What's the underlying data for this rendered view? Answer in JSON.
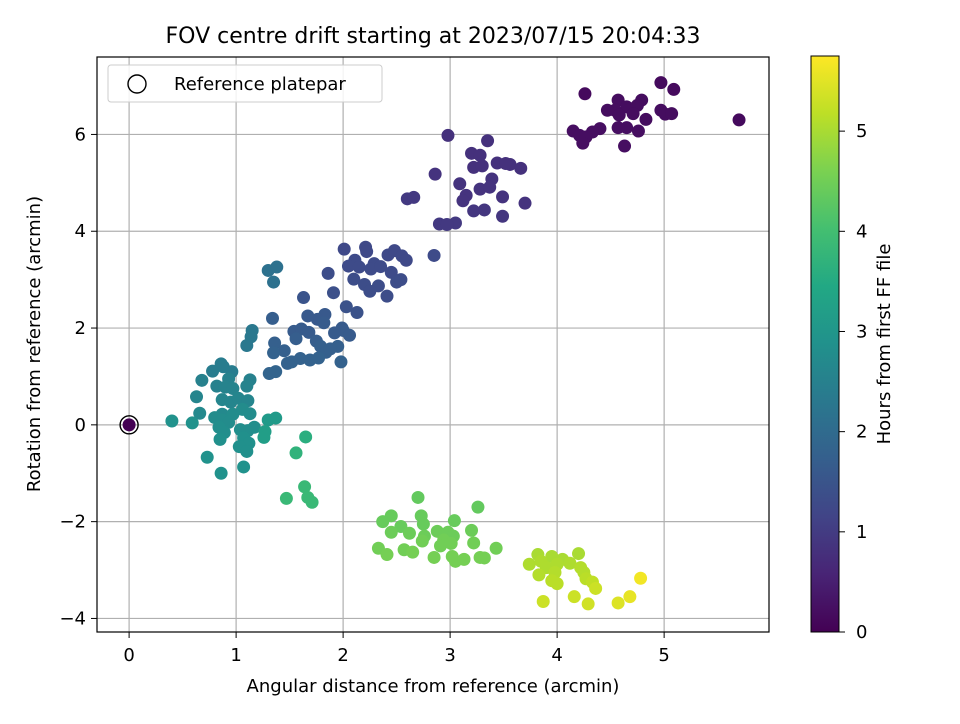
{
  "chart_data": {
    "type": "scatter",
    "title": "FOV centre drift starting at 2023/07/15 20:04:33",
    "xlabel": "Angular distance from reference (arcmin)",
    "ylabel": "Rotation from reference (arcmin)",
    "xlim": [
      -0.3,
      5.98
    ],
    "ylim": [
      -4.28,
      7.6
    ],
    "xticks": [
      0,
      1,
      2,
      3,
      4,
      5
    ],
    "yticks": [
      -4,
      -2,
      0,
      2,
      4,
      6
    ],
    "grid": true,
    "legend": {
      "placement": "top-left",
      "entries": [
        "Reference platepar"
      ]
    },
    "reference_point": {
      "x": 0,
      "y": 0
    },
    "colorbar": {
      "label": "Hours from first FF file",
      "colormap": "viridis",
      "range": [
        0,
        5.75
      ],
      "ticks": [
        0,
        1,
        2,
        3,
        4,
        5
      ]
    },
    "points": [
      {
        "x": 0.0,
        "y": 0.0,
        "c": 0.0
      },
      {
        "x": 4.26,
        "y": 6.84,
        "c": 0.15
      },
      {
        "x": 4.97,
        "y": 7.07,
        "c": 0.15
      },
      {
        "x": 5.09,
        "y": 6.93,
        "c": 0.15
      },
      {
        "x": 4.57,
        "y": 6.71,
        "c": 0.2
      },
      {
        "x": 4.79,
        "y": 6.71,
        "c": 0.2
      },
      {
        "x": 4.65,
        "y": 6.57,
        "c": 0.2
      },
      {
        "x": 4.54,
        "y": 6.5,
        "c": 0.2
      },
      {
        "x": 4.47,
        "y": 6.5,
        "c": 0.2
      },
      {
        "x": 4.75,
        "y": 6.6,
        "c": 0.2
      },
      {
        "x": 4.97,
        "y": 6.5,
        "c": 0.2
      },
      {
        "x": 5.01,
        "y": 6.42,
        "c": 0.2
      },
      {
        "x": 5.07,
        "y": 6.43,
        "c": 0.2
      },
      {
        "x": 4.83,
        "y": 6.31,
        "c": 0.2
      },
      {
        "x": 4.71,
        "y": 6.43,
        "c": 0.2
      },
      {
        "x": 4.58,
        "y": 6.4,
        "c": 0.2
      },
      {
        "x": 4.65,
        "y": 6.14,
        "c": 0.22
      },
      {
        "x": 4.57,
        "y": 6.14,
        "c": 0.22
      },
      {
        "x": 4.76,
        "y": 6.07,
        "c": 0.22
      },
      {
        "x": 4.4,
        "y": 6.12,
        "c": 0.22
      },
      {
        "x": 4.33,
        "y": 6.05,
        "c": 0.22
      },
      {
        "x": 4.27,
        "y": 5.95,
        "c": 0.22
      },
      {
        "x": 4.15,
        "y": 6.07,
        "c": 0.22
      },
      {
        "x": 4.21,
        "y": 5.98,
        "c": 0.22
      },
      {
        "x": 4.24,
        "y": 5.82,
        "c": 0.22
      },
      {
        "x": 4.63,
        "y": 5.76,
        "c": 0.22
      },
      {
        "x": 5.7,
        "y": 6.3,
        "c": 0.15
      },
      {
        "x": 2.98,
        "y": 5.98,
        "c": 0.8
      },
      {
        "x": 3.35,
        "y": 5.87,
        "c": 0.8
      },
      {
        "x": 3.2,
        "y": 5.61,
        "c": 0.8
      },
      {
        "x": 3.28,
        "y": 5.57,
        "c": 0.8
      },
      {
        "x": 3.44,
        "y": 5.41,
        "c": 0.8
      },
      {
        "x": 3.56,
        "y": 5.38,
        "c": 0.8
      },
      {
        "x": 3.52,
        "y": 5.4,
        "c": 0.8
      },
      {
        "x": 3.66,
        "y": 5.3,
        "c": 0.8
      },
      {
        "x": 3.22,
        "y": 5.32,
        "c": 0.8
      },
      {
        "x": 3.3,
        "y": 5.35,
        "c": 0.8
      },
      {
        "x": 2.86,
        "y": 5.18,
        "c": 0.85
      },
      {
        "x": 3.09,
        "y": 4.98,
        "c": 0.85
      },
      {
        "x": 3.39,
        "y": 5.08,
        "c": 0.85
      },
      {
        "x": 3.28,
        "y": 4.87,
        "c": 0.85
      },
      {
        "x": 3.37,
        "y": 4.91,
        "c": 0.85
      },
      {
        "x": 3.49,
        "y": 4.71,
        "c": 0.85
      },
      {
        "x": 3.15,
        "y": 4.74,
        "c": 0.85
      },
      {
        "x": 3.12,
        "y": 4.63,
        "c": 0.85
      },
      {
        "x": 2.6,
        "y": 4.67,
        "c": 0.95
      },
      {
        "x": 2.66,
        "y": 4.7,
        "c": 0.95
      },
      {
        "x": 3.7,
        "y": 4.58,
        "c": 0.85
      },
      {
        "x": 3.49,
        "y": 4.31,
        "c": 0.9
      },
      {
        "x": 3.32,
        "y": 4.44,
        "c": 0.9
      },
      {
        "x": 3.22,
        "y": 4.42,
        "c": 0.9
      },
      {
        "x": 3.05,
        "y": 4.17,
        "c": 0.95
      },
      {
        "x": 2.9,
        "y": 4.15,
        "c": 0.95
      },
      {
        "x": 2.97,
        "y": 4.14,
        "c": 0.95
      },
      {
        "x": 2.01,
        "y": 3.63,
        "c": 1.25
      },
      {
        "x": 2.21,
        "y": 3.67,
        "c": 1.25
      },
      {
        "x": 2.22,
        "y": 3.58,
        "c": 1.25
      },
      {
        "x": 2.42,
        "y": 3.51,
        "c": 1.25
      },
      {
        "x": 2.48,
        "y": 3.6,
        "c": 1.25
      },
      {
        "x": 2.55,
        "y": 3.49,
        "c": 1.25
      },
      {
        "x": 2.59,
        "y": 3.4,
        "c": 1.25
      },
      {
        "x": 2.29,
        "y": 3.33,
        "c": 1.3
      },
      {
        "x": 2.11,
        "y": 3.4,
        "c": 1.3
      },
      {
        "x": 2.05,
        "y": 3.28,
        "c": 1.3
      },
      {
        "x": 2.15,
        "y": 3.26,
        "c": 1.3
      },
      {
        "x": 2.26,
        "y": 3.22,
        "c": 1.3
      },
      {
        "x": 2.35,
        "y": 3.27,
        "c": 1.3
      },
      {
        "x": 2.45,
        "y": 3.15,
        "c": 1.3
      },
      {
        "x": 1.86,
        "y": 3.13,
        "c": 1.35
      },
      {
        "x": 2.1,
        "y": 3.01,
        "c": 1.35
      },
      {
        "x": 2.2,
        "y": 2.9,
        "c": 1.35
      },
      {
        "x": 2.33,
        "y": 2.87,
        "c": 1.35
      },
      {
        "x": 2.5,
        "y": 2.95,
        "c": 1.35
      },
      {
        "x": 2.54,
        "y": 3.0,
        "c": 1.35
      },
      {
        "x": 2.25,
        "y": 2.76,
        "c": 1.35
      },
      {
        "x": 2.41,
        "y": 2.66,
        "c": 1.35
      },
      {
        "x": 2.85,
        "y": 3.5,
        "c": 1.3
      },
      {
        "x": 1.91,
        "y": 2.73,
        "c": 1.4
      },
      {
        "x": 2.03,
        "y": 2.44,
        "c": 1.45
      },
      {
        "x": 2.13,
        "y": 2.32,
        "c": 1.45
      },
      {
        "x": 1.63,
        "y": 2.63,
        "c": 1.5
      },
      {
        "x": 1.83,
        "y": 2.28,
        "c": 1.6
      },
      {
        "x": 1.76,
        "y": 2.18,
        "c": 1.6
      },
      {
        "x": 1.67,
        "y": 2.25,
        "c": 1.6
      },
      {
        "x": 1.82,
        "y": 2.11,
        "c": 1.65
      },
      {
        "x": 1.54,
        "y": 1.93,
        "c": 1.65
      },
      {
        "x": 1.61,
        "y": 1.98,
        "c": 1.65
      },
      {
        "x": 1.68,
        "y": 1.91,
        "c": 1.65
      },
      {
        "x": 1.99,
        "y": 2.0,
        "c": 1.65
      },
      {
        "x": 2.0,
        "y": 1.95,
        "c": 1.65
      },
      {
        "x": 1.92,
        "y": 1.9,
        "c": 1.65
      },
      {
        "x": 2.06,
        "y": 1.85,
        "c": 1.65
      },
      {
        "x": 1.56,
        "y": 1.78,
        "c": 1.7
      },
      {
        "x": 1.75,
        "y": 1.73,
        "c": 1.7
      },
      {
        "x": 1.36,
        "y": 1.69,
        "c": 1.75
      },
      {
        "x": 1.45,
        "y": 1.53,
        "c": 1.75
      },
      {
        "x": 1.79,
        "y": 1.62,
        "c": 1.75
      },
      {
        "x": 1.95,
        "y": 1.62,
        "c": 1.75
      },
      {
        "x": 1.84,
        "y": 1.5,
        "c": 1.75
      },
      {
        "x": 1.88,
        "y": 1.57,
        "c": 1.75
      },
      {
        "x": 1.35,
        "y": 1.49,
        "c": 1.8
      },
      {
        "x": 1.6,
        "y": 1.37,
        "c": 1.8
      },
      {
        "x": 1.69,
        "y": 1.34,
        "c": 1.8
      },
      {
        "x": 1.77,
        "y": 1.38,
        "c": 1.8
      },
      {
        "x": 1.98,
        "y": 1.3,
        "c": 1.8
      },
      {
        "x": 1.52,
        "y": 1.3,
        "c": 1.8
      },
      {
        "x": 1.48,
        "y": 1.27,
        "c": 1.8
      },
      {
        "x": 1.37,
        "y": 1.1,
        "c": 1.85
      },
      {
        "x": 1.31,
        "y": 1.06,
        "c": 1.85
      },
      {
        "x": 1.34,
        "y": 2.2,
        "c": 1.7
      },
      {
        "x": 1.3,
        "y": 3.19,
        "c": 2.15
      },
      {
        "x": 1.38,
        "y": 3.26,
        "c": 2.15
      },
      {
        "x": 1.35,
        "y": 2.95,
        "c": 2.15
      },
      {
        "x": 1.15,
        "y": 1.95,
        "c": 2.3
      },
      {
        "x": 1.14,
        "y": 1.82,
        "c": 2.3
      },
      {
        "x": 1.1,
        "y": 1.64,
        "c": 2.3
      },
      {
        "x": 0.86,
        "y": 1.26,
        "c": 2.4
      },
      {
        "x": 0.78,
        "y": 1.11,
        "c": 2.4
      },
      {
        "x": 0.96,
        "y": 1.1,
        "c": 2.4
      },
      {
        "x": 0.88,
        "y": 1.2,
        "c": 2.4
      },
      {
        "x": 0.68,
        "y": 0.92,
        "c": 2.5
      },
      {
        "x": 0.93,
        "y": 0.95,
        "c": 2.5
      },
      {
        "x": 1.13,
        "y": 0.93,
        "c": 2.5
      },
      {
        "x": 0.82,
        "y": 0.8,
        "c": 2.5
      },
      {
        "x": 0.9,
        "y": 0.78,
        "c": 2.55
      },
      {
        "x": 0.97,
        "y": 0.75,
        "c": 2.55
      },
      {
        "x": 1.1,
        "y": 0.8,
        "c": 2.55
      },
      {
        "x": 0.63,
        "y": 0.58,
        "c": 2.6
      },
      {
        "x": 0.87,
        "y": 0.52,
        "c": 2.6
      },
      {
        "x": 0.95,
        "y": 0.47,
        "c": 2.6
      },
      {
        "x": 1.02,
        "y": 0.55,
        "c": 2.6
      },
      {
        "x": 1.11,
        "y": 0.5,
        "c": 2.6
      },
      {
        "x": 0.66,
        "y": 0.24,
        "c": 2.7
      },
      {
        "x": 0.87,
        "y": 0.22,
        "c": 2.7
      },
      {
        "x": 0.8,
        "y": 0.15,
        "c": 2.75
      },
      {
        "x": 0.87,
        "y": 0.1,
        "c": 2.75
      },
      {
        "x": 0.97,
        "y": 0.22,
        "c": 2.75
      },
      {
        "x": 1.06,
        "y": 0.32,
        "c": 2.75
      },
      {
        "x": 1.13,
        "y": 0.23,
        "c": 2.75
      },
      {
        "x": 0.93,
        "y": 0.05,
        "c": 2.75
      },
      {
        "x": 0.84,
        "y": -0.05,
        "c": 2.8
      },
      {
        "x": 0.89,
        "y": -0.16,
        "c": 2.8
      },
      {
        "x": 1.04,
        "y": -0.1,
        "c": 2.8
      },
      {
        "x": 1.11,
        "y": -0.12,
        "c": 2.8
      },
      {
        "x": 1.17,
        "y": -0.05,
        "c": 2.8
      },
      {
        "x": 0.85,
        "y": -0.3,
        "c": 2.85
      },
      {
        "x": 1.07,
        "y": -0.27,
        "c": 2.85
      },
      {
        "x": 1.12,
        "y": -0.38,
        "c": 2.85
      },
      {
        "x": 1.03,
        "y": -0.45,
        "c": 2.85
      },
      {
        "x": 1.1,
        "y": -0.55,
        "c": 2.85
      },
      {
        "x": 0.73,
        "y": -0.67,
        "c": 2.9
      },
      {
        "x": 1.07,
        "y": -0.87,
        "c": 2.9
      },
      {
        "x": 0.86,
        "y": -1.0,
        "c": 2.9
      },
      {
        "x": 0.4,
        "y": 0.08,
        "c": 2.9
      },
      {
        "x": 0.59,
        "y": 0.04,
        "c": 2.9
      },
      {
        "x": 1.3,
        "y": 0.1,
        "c": 3.1
      },
      {
        "x": 1.37,
        "y": 0.14,
        "c": 3.1
      },
      {
        "x": 1.27,
        "y": -0.14,
        "c": 3.2
      },
      {
        "x": 1.26,
        "y": -0.26,
        "c": 3.2
      },
      {
        "x": 1.65,
        "y": -0.25,
        "c": 3.6
      },
      {
        "x": 1.56,
        "y": -0.58,
        "c": 3.7
      },
      {
        "x": 1.64,
        "y": -1.28,
        "c": 3.85
      },
      {
        "x": 1.67,
        "y": -1.5,
        "c": 3.85
      },
      {
        "x": 1.71,
        "y": -1.6,
        "c": 3.85
      },
      {
        "x": 1.47,
        "y": -1.52,
        "c": 3.85
      },
      {
        "x": 2.7,
        "y": -1.5,
        "c": 4.35
      },
      {
        "x": 3.26,
        "y": -1.7,
        "c": 4.35
      },
      {
        "x": 2.45,
        "y": -1.88,
        "c": 4.4
      },
      {
        "x": 2.73,
        "y": -1.88,
        "c": 4.4
      },
      {
        "x": 2.37,
        "y": -2.0,
        "c": 4.4
      },
      {
        "x": 2.54,
        "y": -2.1,
        "c": 4.4
      },
      {
        "x": 2.75,
        "y": -2.05,
        "c": 4.4
      },
      {
        "x": 3.04,
        "y": -1.98,
        "c": 4.4
      },
      {
        "x": 2.45,
        "y": -2.22,
        "c": 4.45
      },
      {
        "x": 2.88,
        "y": -2.2,
        "c": 4.45
      },
      {
        "x": 2.98,
        "y": -2.22,
        "c": 4.45
      },
      {
        "x": 3.2,
        "y": -2.18,
        "c": 4.45
      },
      {
        "x": 2.62,
        "y": -2.24,
        "c": 4.45
      },
      {
        "x": 2.76,
        "y": -2.3,
        "c": 4.45
      },
      {
        "x": 3.03,
        "y": -2.3,
        "c": 4.45
      },
      {
        "x": 2.94,
        "y": -2.38,
        "c": 4.5
      },
      {
        "x": 2.74,
        "y": -2.4,
        "c": 4.5
      },
      {
        "x": 3.22,
        "y": -2.44,
        "c": 4.5
      },
      {
        "x": 2.33,
        "y": -2.55,
        "c": 4.5
      },
      {
        "x": 2.57,
        "y": -2.58,
        "c": 4.5
      },
      {
        "x": 2.91,
        "y": -2.5,
        "c": 4.5
      },
      {
        "x": 3.01,
        "y": -2.45,
        "c": 4.5
      },
      {
        "x": 3.43,
        "y": -2.55,
        "c": 4.5
      },
      {
        "x": 2.41,
        "y": -2.68,
        "c": 4.55
      },
      {
        "x": 2.65,
        "y": -2.63,
        "c": 4.55
      },
      {
        "x": 2.85,
        "y": -2.74,
        "c": 4.55
      },
      {
        "x": 3.02,
        "y": -2.72,
        "c": 4.55
      },
      {
        "x": 3.28,
        "y": -2.74,
        "c": 4.55
      },
      {
        "x": 3.05,
        "y": -2.82,
        "c": 4.55
      },
      {
        "x": 3.13,
        "y": -2.78,
        "c": 4.55
      },
      {
        "x": 3.32,
        "y": -2.75,
        "c": 4.55
      },
      {
        "x": 3.82,
        "y": -2.68,
        "c": 5.0
      },
      {
        "x": 3.95,
        "y": -2.72,
        "c": 5.0
      },
      {
        "x": 4.05,
        "y": -2.78,
        "c": 5.0
      },
      {
        "x": 4.2,
        "y": -2.66,
        "c": 5.0
      },
      {
        "x": 3.74,
        "y": -2.88,
        "c": 5.05
      },
      {
        "x": 3.85,
        "y": -2.82,
        "c": 5.05
      },
      {
        "x": 3.9,
        "y": -2.95,
        "c": 5.05
      },
      {
        "x": 4.0,
        "y": -2.88,
        "c": 5.05
      },
      {
        "x": 4.12,
        "y": -2.86,
        "c": 5.05
      },
      {
        "x": 4.22,
        "y": -2.95,
        "c": 5.1
      },
      {
        "x": 3.83,
        "y": -3.1,
        "c": 5.1
      },
      {
        "x": 3.98,
        "y": -3.05,
        "c": 5.1
      },
      {
        "x": 4.25,
        "y": -3.05,
        "c": 5.1
      },
      {
        "x": 4.27,
        "y": -3.18,
        "c": 5.15
      },
      {
        "x": 3.95,
        "y": -3.22,
        "c": 5.15
      },
      {
        "x": 4.0,
        "y": -3.28,
        "c": 5.15
      },
      {
        "x": 4.33,
        "y": -3.25,
        "c": 5.2
      },
      {
        "x": 4.36,
        "y": -3.38,
        "c": 5.3
      },
      {
        "x": 3.87,
        "y": -3.65,
        "c": 5.3
      },
      {
        "x": 4.16,
        "y": -3.55,
        "c": 5.3
      },
      {
        "x": 4.29,
        "y": -3.7,
        "c": 5.35
      },
      {
        "x": 4.57,
        "y": -3.68,
        "c": 5.45
      },
      {
        "x": 4.68,
        "y": -3.55,
        "c": 5.55
      },
      {
        "x": 4.78,
        "y": -3.17,
        "c": 5.65
      }
    ]
  }
}
